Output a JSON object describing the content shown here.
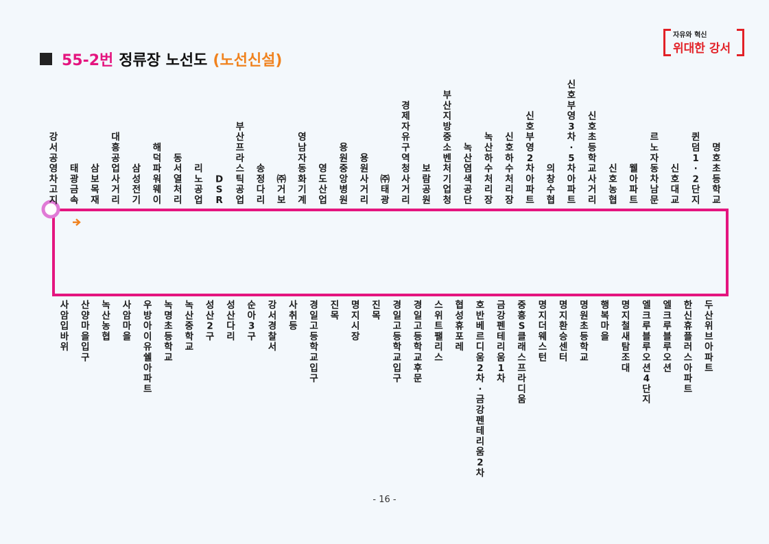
{
  "title": {
    "route": "55-2번",
    "main": "정류장 노선도",
    "tag": "(노선신설)"
  },
  "logo": {
    "line1": "자유와 혁신",
    "line2": "위대한 강서"
  },
  "colors": {
    "route_line": "#e4157f",
    "start_marker": "#e07ad6",
    "arrow": "#f0821e"
  },
  "icons": {
    "start_marker": "circle",
    "direction": "right-arrow"
  },
  "stops_top": [
    "강서공영차고지",
    "태광금속",
    "삼보목재",
    "대흥공업사거리",
    "삼성전기",
    "해덕파워웨이",
    "동서열처리",
    "리노공업",
    "DSR",
    "부산프라스틱공업",
    "송정다리",
    "㈜거보",
    "영남자동화기계",
    "영도산업",
    "용원중앙병원",
    "용원사거리",
    "㈜태광",
    "경제자유구역청사거리",
    "보람공원",
    "부산지방중소벤처기업청",
    "녹산염색공단",
    "녹산하수처리장",
    "신호하수처리장",
    "신호부영2차아파트",
    "의창수협",
    "신호부영3차·5차아파트",
    "신호초등학교사거리",
    "신호농협",
    "웰아파트",
    "르노자동차남문",
    "신호대교",
    "퀸덤1·2단지",
    "명호초등학교"
  ],
  "stops_bottom": [
    "사암입바위",
    "산양마을입구",
    "녹산농협",
    "사암마을",
    "우방아이유쉘아파트",
    "녹명초등학교",
    "녹산중학교",
    "성산2구",
    "성산다리",
    "순아3구",
    "강서경찰서",
    "사취등",
    "경일고등학교입구",
    "진목",
    "명지시장",
    "진목",
    "경일고등학교입구",
    "경일고등학교후문",
    "스위트팰리스",
    "협성휴포레",
    "호반베르디움2차·금강펜테리움2차",
    "금강펜테리움1차",
    "중흥S클래스프라디움",
    "명지더웨스턴",
    "명지환승센터",
    "명원초등학교",
    "행복마을",
    "명지철새탐조대",
    "엘크루블루오션4단지",
    "엘크루블루오션",
    "한신휴플러스아파트",
    "두산위브아파트"
  ],
  "page_number": "- 16 -"
}
